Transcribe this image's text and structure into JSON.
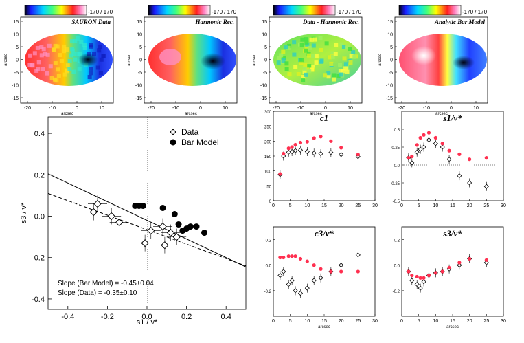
{
  "velocity_maps": {
    "colorbar_label": "-170 / 170",
    "xlabel": "arcsec",
    "ylabel": "arcsec",
    "y_ticks": [
      "15",
      "10",
      "5",
      "0",
      "-5",
      "-10",
      "-15"
    ],
    "x_ticks": [
      "-20",
      "-10",
      "0",
      "10"
    ],
    "panels": [
      {
        "title": "SAURON Data"
      },
      {
        "title": "Harmonic Rec."
      },
      {
        "title": "Data - Harmonic Rec."
      },
      {
        "title": "Analytic Bar Model"
      }
    ]
  },
  "chart_data": [
    {
      "type": "scatter",
      "id": "s3_vs_s1",
      "xlabel": "s1 / v*",
      "ylabel": "s3 / v*",
      "xlim": [
        -0.5,
        0.5
      ],
      "ylim": [
        -0.45,
        0.48
      ],
      "x_ticks": [
        "-0.4",
        "-0.2",
        "0.0",
        "0.2",
        "0.4"
      ],
      "y_ticks": [
        "0.4",
        "0.2",
        "0.0",
        "-0.2",
        "-0.4"
      ],
      "legend": [
        "Data",
        "Bar Model"
      ],
      "legend_position": "top-right",
      "annotations": [
        "Slope (Bar Model) = -0.45±0.04",
        "Slope (Data) = -0.35±0.10"
      ],
      "series": [
        {
          "name": "Data",
          "marker": "open-diamond",
          "x": [
            -0.25,
            -0.27,
            -0.18,
            -0.14,
            -0.01,
            0.02,
            0.08,
            0.09,
            0.12,
            0.15
          ],
          "y": [
            0.06,
            0.02,
            0.0,
            -0.03,
            -0.13,
            -0.07,
            -0.05,
            -0.14,
            -0.08,
            -0.1
          ]
        },
        {
          "name": "Bar Model",
          "marker": "filled-circle",
          "x": [
            -0.06,
            -0.04,
            -0.02,
            0.08,
            0.14,
            0.16,
            0.18,
            0.2,
            0.22,
            0.25,
            0.29
          ],
          "y": [
            0.05,
            0.05,
            0.05,
            0.04,
            0.01,
            -0.04,
            -0.07,
            -0.06,
            -0.05,
            -0.05,
            -0.08
          ]
        }
      ],
      "fit_lines": [
        {
          "name": "Bar Model fit",
          "style": "solid",
          "slope": -0.45,
          "intercept": -0.02
        },
        {
          "name": "Data fit",
          "style": "dashed",
          "slope": -0.35,
          "intercept": -0.065
        }
      ]
    },
    {
      "type": "scatter",
      "id": "c1",
      "title": "c1",
      "xlabel": "arcsec",
      "xlim": [
        0,
        30
      ],
      "ylim": [
        0,
        300
      ],
      "x_ticks": [
        "0",
        "5",
        "10",
        "15",
        "20",
        "25",
        "30"
      ],
      "y_ticks": [
        "300",
        "250",
        "200",
        "150",
        "100",
        "50",
        "0"
      ],
      "series": [
        {
          "name": "Data",
          "x": [
            2,
            3,
            4.5,
            5.5,
            6.5,
            8,
            10,
            12,
            14,
            17,
            20,
            25
          ],
          "y": [
            88,
            150,
            163,
            165,
            168,
            170,
            165,
            160,
            158,
            162,
            155,
            148
          ]
        },
        {
          "name": "Bar Model",
          "x": [
            2,
            3,
            4.5,
            5.5,
            6.5,
            8,
            10,
            12,
            14,
            17,
            20,
            25
          ],
          "y": [
            90,
            158,
            176,
            180,
            188,
            195,
            198,
            210,
            215,
            200,
            178,
            155
          ]
        }
      ]
    },
    {
      "type": "scatter",
      "id": "s1_v",
      "title": "s1/v*",
      "xlabel": "arcsec",
      "xlim": [
        0,
        30
      ],
      "ylim": [
        -0.5,
        0.75
      ],
      "x_ticks": [
        "0",
        "5",
        "10",
        "15",
        "20",
        "25",
        "30"
      ],
      "y_ticks": [
        "0.5",
        "0.25",
        "0.0",
        "-0.25",
        "-0.5"
      ],
      "series": [
        {
          "name": "Data",
          "x": [
            2,
            3,
            4.5,
            5.5,
            6.5,
            8,
            10,
            12,
            14,
            17,
            20,
            25
          ],
          "y": [
            0.1,
            0.03,
            0.18,
            0.22,
            0.25,
            0.35,
            0.3,
            0.25,
            0.08,
            -0.15,
            -0.25,
            -0.3
          ]
        },
        {
          "name": "Bar Model",
          "x": [
            2,
            3,
            4.5,
            5.5,
            6.5,
            8,
            10,
            12,
            14,
            17,
            20,
            25
          ],
          "y": [
            0.1,
            0.12,
            0.28,
            0.38,
            0.42,
            0.45,
            0.38,
            0.3,
            0.2,
            0.15,
            0.08,
            0.1
          ]
        }
      ]
    },
    {
      "type": "scatter",
      "id": "c3_v",
      "title": "c3/v*",
      "xlabel": "arcsec",
      "xlim": [
        0,
        30
      ],
      "ylim": [
        -0.4,
        0.3
      ],
      "x_ticks": [
        "0",
        "5",
        "10",
        "15",
        "20",
        "25",
        "30"
      ],
      "y_ticks": [
        "0.2",
        "0.0",
        "-0.2"
      ],
      "series": [
        {
          "name": "Data",
          "x": [
            2,
            3,
            4.5,
            5.5,
            6.5,
            8,
            10,
            12,
            14,
            17,
            20,
            25
          ],
          "y": [
            -0.08,
            -0.05,
            -0.15,
            -0.12,
            -0.2,
            -0.22,
            -0.18,
            -0.12,
            -0.1,
            -0.05,
            0.0,
            0.08
          ]
        },
        {
          "name": "Bar Model",
          "x": [
            2,
            3,
            4.5,
            5.5,
            6.5,
            8,
            10,
            12,
            14,
            17,
            20,
            25
          ],
          "y": [
            0.06,
            0.06,
            0.07,
            0.07,
            0.07,
            0.05,
            0.03,
            0.0,
            -0.03,
            -0.05,
            -0.05,
            -0.05
          ]
        }
      ]
    },
    {
      "type": "scatter",
      "id": "s3_v",
      "title": "s3/v*",
      "xlabel": "arcsec",
      "xlim": [
        0,
        30
      ],
      "ylim": [
        -0.4,
        0.3
      ],
      "x_ticks": [
        "0",
        "5",
        "10",
        "15",
        "20",
        "25",
        "30"
      ],
      "y_ticks": [
        "0.2",
        "0.0",
        "-0.2"
      ],
      "series": [
        {
          "name": "Data",
          "x": [
            2,
            3,
            4.5,
            5.5,
            6.5,
            8,
            10,
            12,
            14,
            17,
            20,
            25
          ],
          "y": [
            -0.05,
            -0.12,
            -0.15,
            -0.18,
            -0.13,
            -0.08,
            -0.06,
            -0.05,
            -0.03,
            0.0,
            0.05,
            0.02
          ]
        },
        {
          "name": "Bar Model",
          "x": [
            2,
            3,
            4.5,
            5.5,
            6.5,
            8,
            10,
            12,
            14,
            17,
            20,
            25
          ],
          "y": [
            -0.05,
            -0.08,
            -0.09,
            -0.1,
            -0.1,
            -0.08,
            -0.06,
            -0.05,
            -0.02,
            0.02,
            0.05,
            0.04
          ]
        }
      ]
    }
  ]
}
